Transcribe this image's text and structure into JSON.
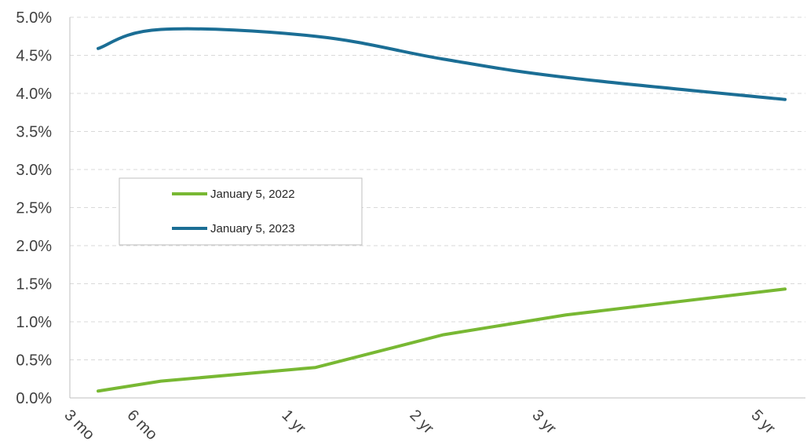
{
  "chart_data": {
    "type": "line",
    "title": "",
    "xlabel": "",
    "ylabel": "",
    "x": [
      "3 mo",
      "6 mo",
      "1 yr",
      "2 yr",
      "3 yr",
      "5 yr"
    ],
    "ylim": [
      0,
      5
    ],
    "y_ticks": [
      "0.0%",
      "0.5%",
      "1.0%",
      "1.5%",
      "2.0%",
      "2.5%",
      "3.0%",
      "3.5%",
      "4.0%",
      "4.5%",
      "5.0%"
    ],
    "grid": true,
    "legend_position": "center-left",
    "series": [
      {
        "name": "January 5, 2022",
        "color": "#78b833",
        "values": [
          0.09,
          0.22,
          0.4,
          0.83,
          1.09,
          1.43
        ]
      },
      {
        "name": "January 5, 2023",
        "color": "#1b6e95",
        "values": [
          4.59,
          4.84,
          4.75,
          4.45,
          4.21,
          3.92
        ]
      }
    ]
  }
}
